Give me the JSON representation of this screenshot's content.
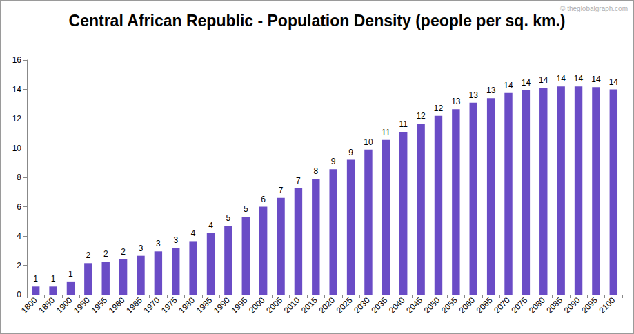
{
  "chart_data": {
    "type": "bar",
    "title": "Central African Republic - Population Density (people per sq. km.)",
    "annotations": [
      "© theglobalgraph.com"
    ],
    "categories": [
      "1800",
      "1850",
      "1900",
      "1950",
      "1955",
      "1960",
      "1965",
      "1970",
      "1975",
      "1980",
      "1985",
      "1990",
      "1995",
      "2000",
      "2005",
      "2010",
      "2015",
      "2020",
      "2025",
      "2030",
      "2035",
      "2040",
      "2045",
      "2050",
      "2055",
      "2060",
      "2065",
      "2070",
      "2075",
      "2080",
      "2085",
      "2090",
      "2095",
      "2100"
    ],
    "values": [
      0.55,
      0.55,
      0.9,
      2.15,
      2.25,
      2.4,
      2.65,
      2.95,
      3.2,
      3.65,
      4.2,
      4.7,
      5.3,
      6.0,
      6.6,
      7.25,
      7.9,
      8.55,
      9.2,
      9.9,
      10.55,
      11.1,
      11.65,
      12.2,
      12.65,
      13.1,
      13.4,
      13.75,
      13.95,
      14.1,
      14.2,
      14.2,
      14.15,
      14.0
    ],
    "value_labels": [
      "1",
      "1",
      "1",
      "2",
      "2",
      "2",
      "3",
      "3",
      "3",
      "4",
      "4",
      "5",
      "5",
      "6",
      "7",
      "7",
      "8",
      "9",
      "9",
      "10",
      "11",
      "11",
      "12",
      "12",
      "13",
      "13",
      "13",
      "14",
      "14",
      "14",
      "14",
      "14",
      "14",
      "14"
    ],
    "data_labels": true,
    "color": "#6a4cc6",
    "ylim": [
      0,
      16
    ],
    "yticks": [
      0,
      2,
      4,
      6,
      8,
      10,
      12,
      14,
      16
    ],
    "grid": false
  }
}
